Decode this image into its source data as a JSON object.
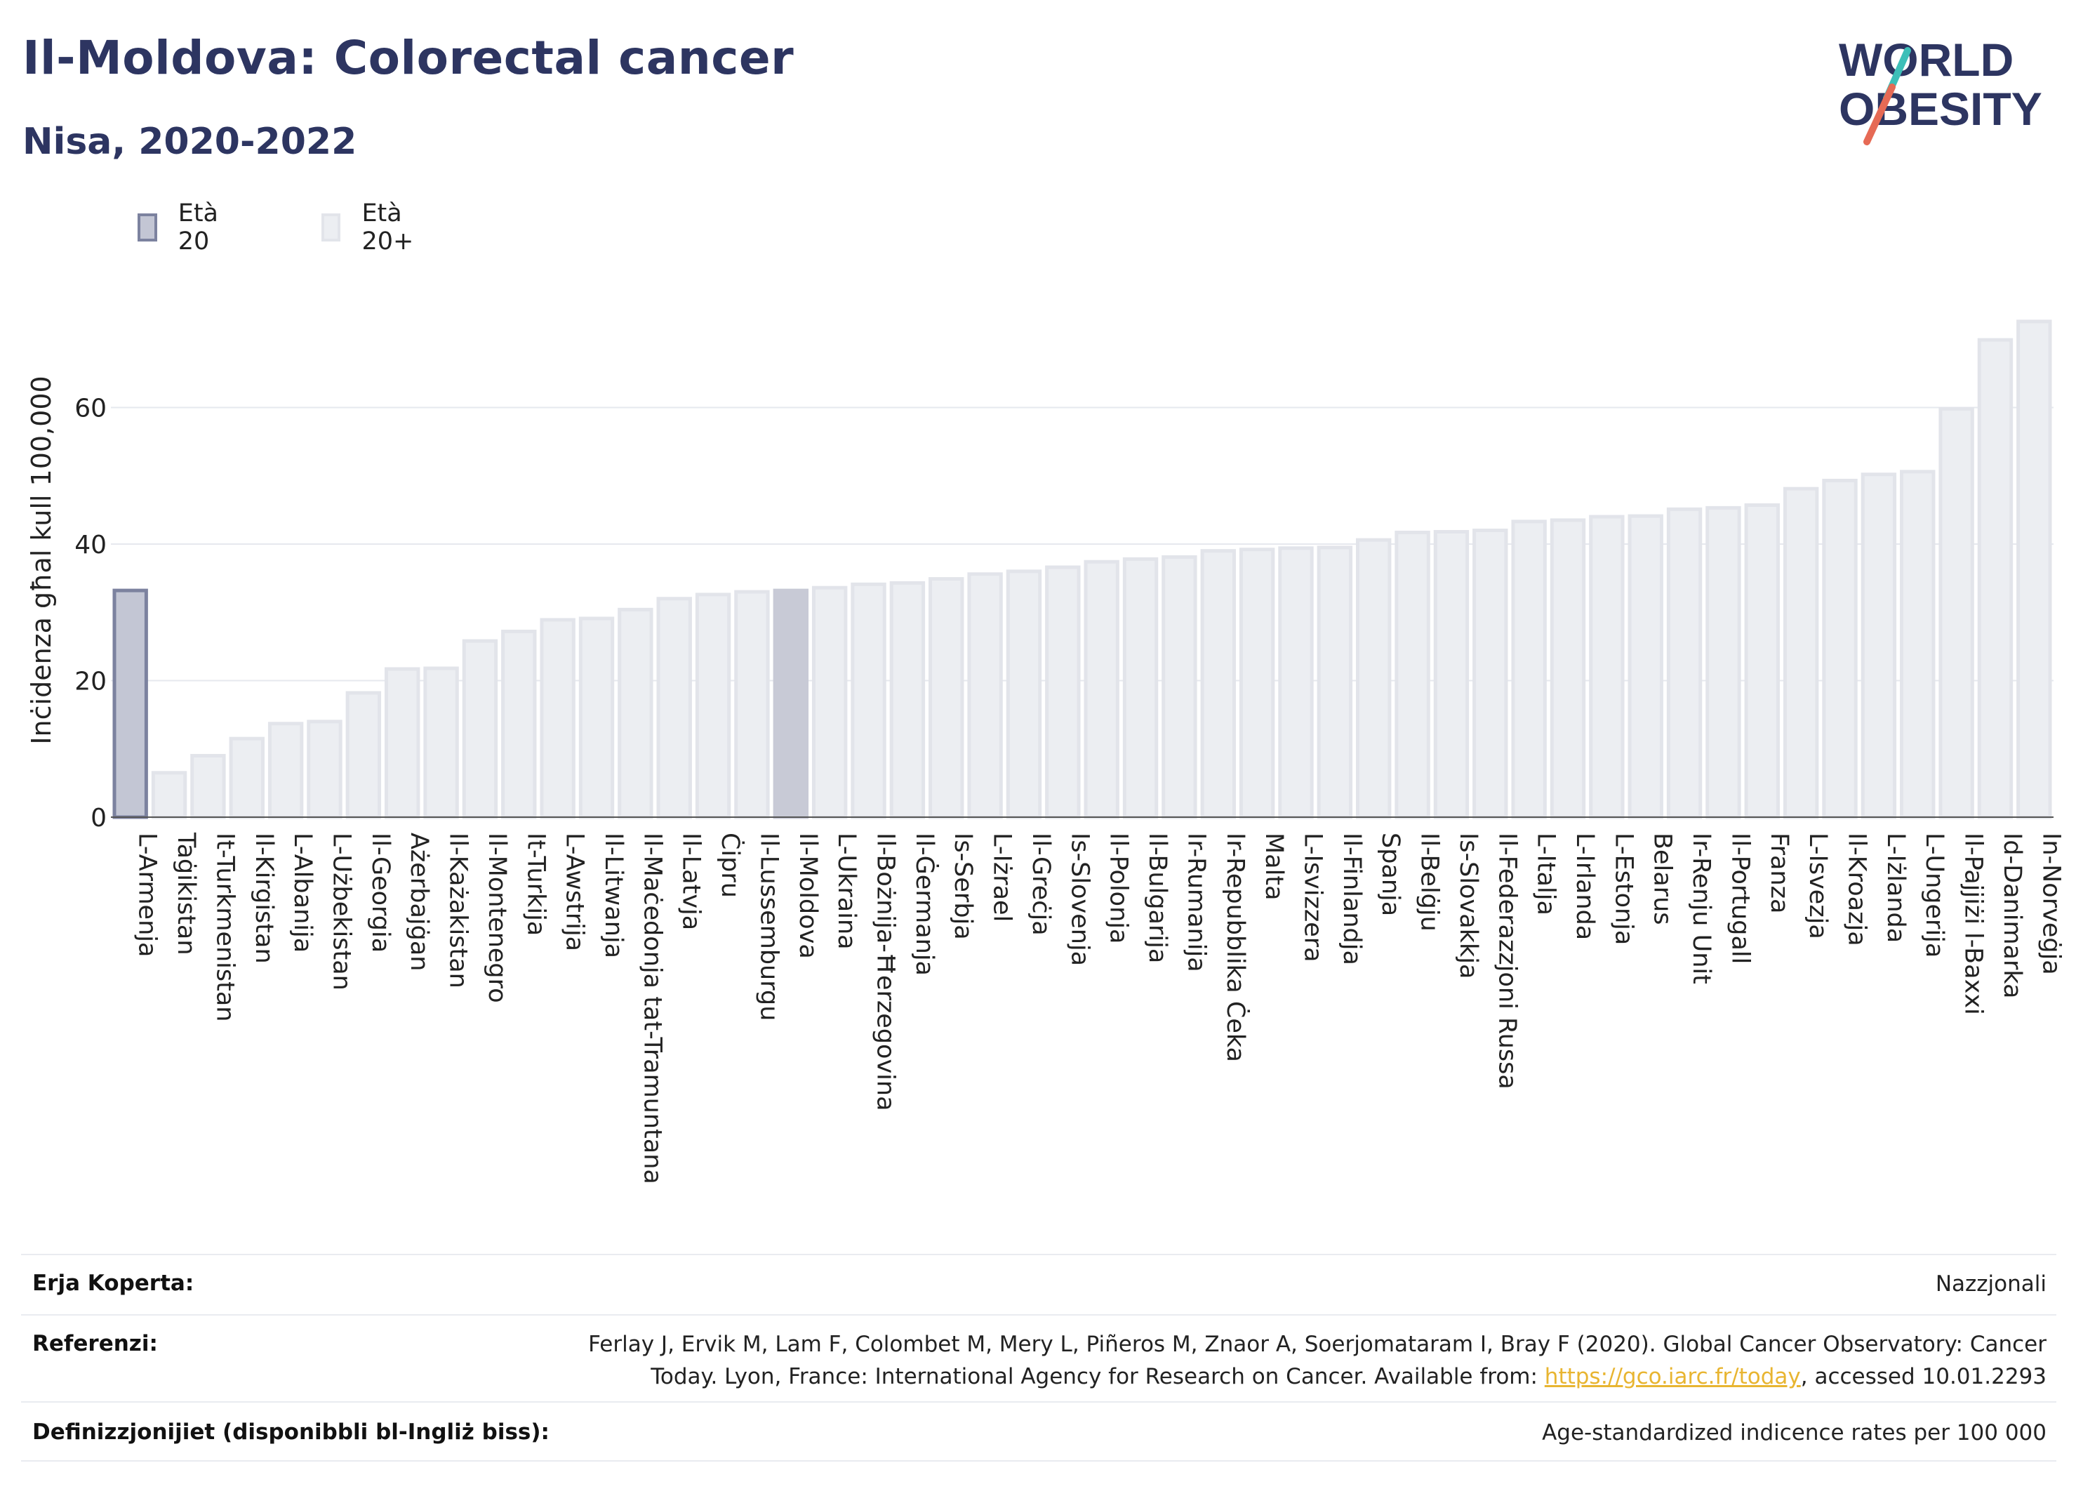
{
  "header": {
    "title": "Il-Moldova: Colorectal cancer",
    "subtitle": "Nisa, 2020-2022"
  },
  "logo": {
    "line1": "WORLD",
    "line2": "OBESITY"
  },
  "legend": [
    {
      "label": "Età 20",
      "fill": "#c3c6d4",
      "stroke": "#7c829f"
    },
    {
      "label": "Età 20+",
      "fill": "#eceef2",
      "stroke": "#e2e4ea"
    }
  ],
  "colors": {
    "highlight_fill": "#c3c6d4",
    "highlight_stroke": "#7c829f",
    "bar_fill": "#eceef2",
    "bar_stroke": "#e2e4ea",
    "moldova_fill": "#c8cad6",
    "grid": "#e6e8ee",
    "axis_text": "#222222"
  },
  "chart_data": {
    "type": "bar",
    "ylabel": "Inċidenza għal kull 100,000",
    "ylim": [
      0,
      73
    ],
    "yticks": [
      0,
      20,
      40,
      60
    ],
    "grid": true,
    "highlight": [
      "L-Armenja"
    ],
    "selected": "Il-Moldova",
    "categories": [
      "L-Armenja",
      "Taġikistan",
      "It-Turkmenistan",
      "Il-Kirgistan",
      "L-Albanija",
      "L-Użbekistan",
      "Il-Georgia",
      "Ażerbajġan",
      "Il-Każakistan",
      "Il-Montenegro",
      "It-Turkija",
      "L-Awstrija",
      "Il-Litwanja",
      "Il-Maċedonja tat-Tramuntana",
      "Il-Latvja",
      "Ċipru",
      "Il-Lussemburgu",
      "Il-Moldova",
      "L-Ukraina",
      "Il-Bożnija-Ħerzegovina",
      "Il-Ġermanja",
      "Is-Serbja",
      "L-Iżrael",
      "Il-Greċja",
      "Is-Slovenja",
      "Il-Polonja",
      "Il-Bulgarija",
      "Ir-Rumanija",
      "Ir-Repubblika Ċeka",
      "Malta",
      "L-Isvizzera",
      "Il-Finlandja",
      "Spanja",
      "Il-Belġju",
      "Is-Slovakkja",
      "Il-Federazzjoni Russa",
      "L-Italja",
      "L-Irlanda",
      "L-Estonja",
      "Belarus",
      "Ir-Renju Unit",
      "Il-Portugall",
      "Franza",
      "L-Isvezja",
      "Il-Kroazja",
      "L-Iżlanda",
      "L-Ungerija",
      "Il-Pajjiżi l-Baxxi",
      "Id-Danimarka",
      "In-Norveġja"
    ],
    "values": [
      33.2,
      6.5,
      9.0,
      11.5,
      13.7,
      14.0,
      18.2,
      21.7,
      21.8,
      25.8,
      27.2,
      28.9,
      29.1,
      30.4,
      32.0,
      32.6,
      33.0,
      33.2,
      33.6,
      34.1,
      34.3,
      34.9,
      35.6,
      36.0,
      36.6,
      37.4,
      37.8,
      38.1,
      39.0,
      39.2,
      39.4,
      39.5,
      40.6,
      41.7,
      41.8,
      42.0,
      43.3,
      43.5,
      44.0,
      44.1,
      45.1,
      45.3,
      45.7,
      48.1,
      49.3,
      50.2,
      50.6,
      59.8,
      69.9,
      72.6
    ]
  },
  "footer": {
    "coverage_label": "Erja Koperta:",
    "coverage_value": "Nazzjonali",
    "references_label": "Referenzi:",
    "references_line1": "Ferlay J, Ervik M, Lam F, Colombet M, Mery L, Piñeros M, Znaor A, Soerjomataram I, Bray F (2020). Global Cancer Observatory: Cancer",
    "references_line2_pre": "Today. Lyon, France: International Agency for Research on Cancer. Available from: ",
    "references_link": "https://gco.iarc.fr/today",
    "references_line2_post": ", accessed 10.01.2293",
    "definitions_label": "Definizzjonijiet (disponibbli bl-Ingliż biss):",
    "definitions_value": "Age-standardized indicence rates per 100 000"
  }
}
